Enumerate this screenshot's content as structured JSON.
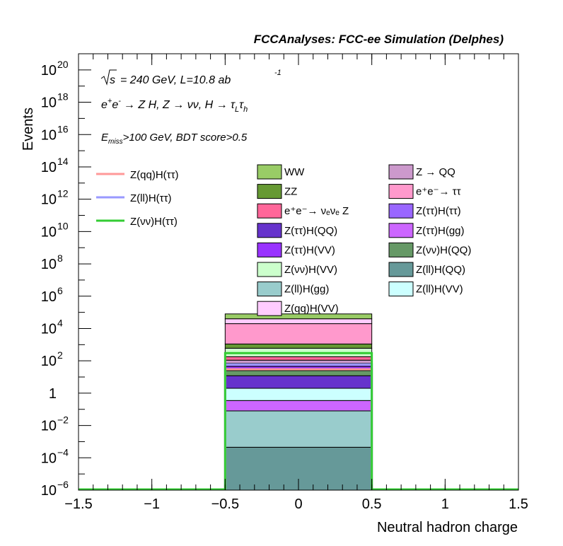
{
  "chart_data": {
    "type": "bar",
    "title": "FCCAnalyses: FCC-ee Simulation (Delphes)",
    "xlabel": "Neutral hadron charge",
    "ylabel": "Events",
    "xlim": [
      -1.5,
      1.5
    ],
    "ylog": true,
    "ylim_exp": [
      -6,
      21
    ],
    "x_ticks": [
      "−1.5",
      "−1",
      "−0.5",
      "0",
      "0.5",
      "1",
      "1.5"
    ],
    "x_tick_values": [
      -1.5,
      -1,
      -0.5,
      0,
      0.5,
      1,
      1.5
    ],
    "y_ticks": [
      {
        "label": "10",
        "exp": "−6",
        "value_exp": -6
      },
      {
        "label": "10",
        "exp": "−4",
        "value_exp": -4
      },
      {
        "label": "10",
        "exp": "−2",
        "value_exp": -2
      },
      {
        "label": "1",
        "exp": "",
        "value_exp": 0
      },
      {
        "label": "10",
        "exp": "2",
        "value_exp": 2
      },
      {
        "label": "10",
        "exp": "4",
        "value_exp": 4
      },
      {
        "label": "10",
        "exp": "6",
        "value_exp": 6
      },
      {
        "label": "10",
        "exp": "8",
        "value_exp": 8
      },
      {
        "label": "10",
        "exp": "10",
        "value_exp": 10
      },
      {
        "label": "10",
        "exp": "12",
        "value_exp": 12
      },
      {
        "label": "10",
        "exp": "14",
        "value_exp": 14
      },
      {
        "label": "10",
        "exp": "16",
        "value_exp": 16
      },
      {
        "label": "10",
        "exp": "18",
        "value_exp": 18
      },
      {
        "label": "10",
        "exp": "20",
        "value_exp": 20
      }
    ],
    "bin": [
      -0.5,
      0.5
    ],
    "stack": [
      {
        "name": "Z(ll)H(QQ)",
        "color": "#669999",
        "bottom": 1e-06,
        "top": 0.00045
      },
      {
        "name": "Z(ll)H(gg)",
        "color": "#99cccc",
        "bottom": 0.00045,
        "top": 0.08
      },
      {
        "name": "Z(ττ)H(gg)",
        "color": "#cc66ff",
        "bottom": 0.08,
        "top": 0.35
      },
      {
        "name": "Z(ll)H(VV)",
        "color": "#ccffff",
        "bottom": 0.35,
        "top": 2.0
      },
      {
        "name": "Z(ττ)H(QQ)",
        "color": "#6633cc",
        "bottom": 2.0,
        "top": 12
      },
      {
        "name": "Z(νν)H(QQ)",
        "color": "#669966",
        "bottom": 12,
        "top": 25
      },
      {
        "name": "Z(ττ)H(VV)",
        "color": "#9933ff",
        "bottom": 25,
        "top": 45
      },
      {
        "name": "Z(ττ)H(ττ)",
        "color": "#9966ff",
        "bottom": 45,
        "top": 70
      },
      {
        "name": "Z → QQ",
        "color": "#cc99cc",
        "bottom": 70,
        "top": 110
      },
      {
        "name": "e⁺e⁻→ νₑνₑ Z",
        "color": "#ff6699",
        "bottom": 110,
        "top": 180
      },
      {
        "name": "Z(νν)H(VV)",
        "color": "#ccffcc",
        "bottom": 180,
        "top": 600
      },
      {
        "name": "ZZ",
        "color": "#669933",
        "bottom": 600,
        "top": 1100
      },
      {
        "name": "e⁺e⁻→ ττ",
        "color": "#ff99cc",
        "bottom": 1100,
        "top": 20000
      },
      {
        "name": "Z(qq)H(VV)",
        "color": "#ffccff",
        "bottom": 20000,
        "top": 40000
      },
      {
        "name": "WW",
        "color": "#99cc66",
        "bottom": 40000,
        "top": 80000
      }
    ],
    "signal": [
      {
        "name": "Z(qq)H(ττ)",
        "color": "#ff9999",
        "value": 30
      },
      {
        "name": "Z(ll)H(ττ)",
        "color": "#9999ff",
        "value": 60
      },
      {
        "name": "Z(νν)H(ττ)",
        "color": "#33cc33",
        "value": 300
      }
    ],
    "annotations": {
      "sqrt_s": "= 240 GeV, L=10.8 ab",
      "lumi_exp": "-1",
      "process_a": "e",
      "process_b": "e",
      "process_c": "→ Z H, Z → νν, H → τ",
      "process_d": "τ",
      "sub_L": "L",
      "sub_h": "h",
      "cut_E": "E",
      "cut_sub": "miss",
      "cut_rest": ">100 GeV, BDT score>0.5"
    },
    "legend_signal": [
      "Z(qq)H(ττ)",
      "Z(ll)H(ττ)",
      "Z(νν)H(ττ)"
    ],
    "legend_col1": [
      {
        "label": "WW",
        "color": "#99cc66"
      },
      {
        "label": "ZZ",
        "color": "#669933"
      },
      {
        "label": "e⁺e⁻→ νₑνₑ Z",
        "color": "#ff6699"
      },
      {
        "label": "Z(ττ)H(QQ)",
        "color": "#6633cc"
      },
      {
        "label": "Z(ττ)H(VV)",
        "color": "#9933ff"
      },
      {
        "label": "Z(νν)H(VV)",
        "color": "#ccffcc"
      },
      {
        "label": "Z(ll)H(gg)",
        "color": "#99cccc"
      },
      {
        "label": "Z(qq)H(VV)",
        "color": "#ffccff"
      }
    ],
    "legend_col2": [
      {
        "label": "Z → QQ",
        "color": "#cc99cc"
      },
      {
        "label": "e⁺e⁻→ ττ",
        "color": "#ff99cc"
      },
      {
        "label": "Z(ττ)H(ττ)",
        "color": "#9966ff"
      },
      {
        "label": "Z(ττ)H(gg)",
        "color": "#cc66ff"
      },
      {
        "label": "Z(νν)H(QQ)",
        "color": "#669966"
      },
      {
        "label": "Z(ll)H(QQ)",
        "color": "#669999"
      },
      {
        "label": "Z(ll)H(VV)",
        "color": "#ccffff"
      }
    ]
  }
}
